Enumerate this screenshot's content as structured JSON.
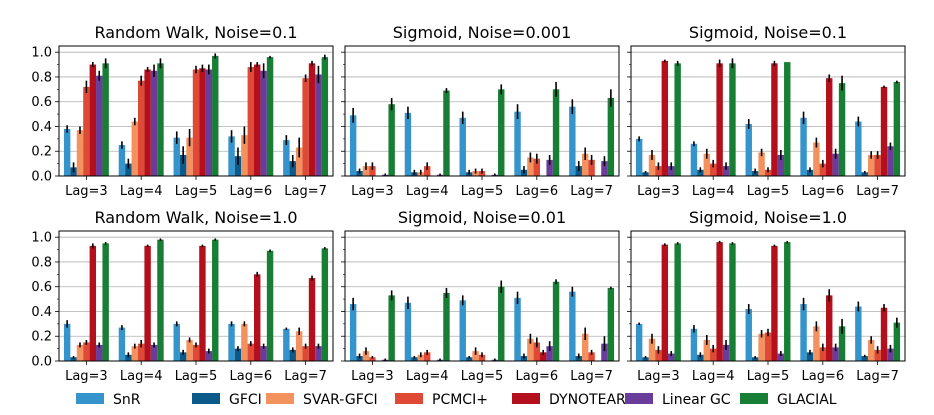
{
  "legend": [
    {
      "name": "SnR",
      "color": "#3594cc"
    },
    {
      "name": "GFCI",
      "color": "#0b5a8a"
    },
    {
      "name": "SVAR-GFCI",
      "color": "#f4925f"
    },
    {
      "name": "PCMCI+",
      "color": "#df4a37"
    },
    {
      "name": "DYNOTEARS",
      "color": "#b40f1c"
    },
    {
      "name": "Linear GC",
      "color": "#6a3d9a"
    },
    {
      "name": "GLACIAL",
      "color": "#187d35"
    }
  ],
  "chart_data": [
    {
      "type": "bar",
      "title": "Random Walk, Noise=0.1",
      "categories": [
        "Lag=3",
        "Lag=4",
        "Lag=5",
        "Lag=6",
        "Lag=7"
      ],
      "ylim": [
        0,
        1.05
      ],
      "yticks": [
        "0.0",
        "0.2",
        "0.4",
        "0.6",
        "0.8",
        "1.0"
      ],
      "series": [
        {
          "name": "SnR",
          "values": [
            0.38,
            0.25,
            0.31,
            0.32,
            0.29
          ],
          "err": [
            0.03,
            0.03,
            0.05,
            0.05,
            0.04
          ]
        },
        {
          "name": "GFCI",
          "values": [
            0.07,
            0.1,
            0.17,
            0.16,
            0.12
          ],
          "err": [
            0.04,
            0.04,
            0.07,
            0.07,
            0.05
          ]
        },
        {
          "name": "SVAR-GFCI",
          "values": [
            0.37,
            0.44,
            0.31,
            0.33,
            0.23
          ],
          "err": [
            0.03,
            0.03,
            0.07,
            0.07,
            0.08
          ]
        },
        {
          "name": "PCMCI+",
          "values": [
            0.72,
            0.77,
            0.86,
            0.88,
            0.79
          ],
          "err": [
            0.05,
            0.04,
            0.03,
            0.04,
            0.03
          ]
        },
        {
          "name": "DYNOTEARS",
          "values": [
            0.9,
            0.86,
            0.87,
            0.9,
            0.91
          ],
          "err": [
            0.02,
            0.02,
            0.03,
            0.02,
            0.02
          ]
        },
        {
          "name": "Linear GC",
          "values": [
            0.81,
            0.85,
            0.86,
            0.85,
            0.82
          ],
          "err": [
            0.04,
            0.05,
            0.04,
            0.06,
            0.07
          ]
        },
        {
          "name": "GLACIAL",
          "values": [
            0.91,
            0.91,
            0.97,
            0.96,
            0.96
          ],
          "err": [
            0.04,
            0.04,
            0.02,
            0.01,
            0.02
          ]
        }
      ]
    },
    {
      "type": "bar",
      "title": "Sigmoid, Noise=0.001",
      "categories": [
        "Lag=3",
        "Lag=4",
        "Lag=5",
        "Lag=6",
        "Lag=7"
      ],
      "ylim": [
        0,
        1.05
      ],
      "yticks": [],
      "series": [
        {
          "name": "SnR",
          "values": [
            0.49,
            0.51,
            0.47,
            0.52,
            0.56
          ],
          "err": [
            0.06,
            0.05,
            0.05,
            0.06,
            0.06
          ]
        },
        {
          "name": "GFCI",
          "values": [
            0.04,
            0.03,
            0.03,
            0.05,
            0.08
          ],
          "err": [
            0.02,
            0.02,
            0.02,
            0.03,
            0.04
          ]
        },
        {
          "name": "SVAR-GFCI",
          "values": [
            0.08,
            0.03,
            0.04,
            0.15,
            0.18
          ],
          "err": [
            0.03,
            0.02,
            0.02,
            0.04,
            0.05
          ]
        },
        {
          "name": "PCMCI+",
          "values": [
            0.08,
            0.08,
            0.04,
            0.14,
            0.13
          ],
          "err": [
            0.03,
            0.03,
            0.02,
            0.04,
            0.04
          ]
        },
        {
          "name": "DYNOTEARS",
          "values": [
            0,
            0,
            0,
            0,
            0
          ],
          "err": [
            0,
            0,
            0,
            0,
            0
          ]
        },
        {
          "name": "Linear GC",
          "values": [
            0.01,
            0.01,
            0.01,
            0.13,
            0.12
          ],
          "err": [
            0.01,
            0.01,
            0.01,
            0.04,
            0.04
          ]
        },
        {
          "name": "GLACIAL",
          "values": [
            0.58,
            0.69,
            0.7,
            0.7,
            0.63
          ],
          "err": [
            0.05,
            0.02,
            0.04,
            0.06,
            0.07
          ]
        }
      ]
    },
    {
      "type": "bar",
      "title": "Sigmoid, Noise=0.1",
      "categories": [
        "Lag=3",
        "Lag=4",
        "Lag=5",
        "Lag=6",
        "Lag=7"
      ],
      "ylim": [
        0,
        1.05
      ],
      "yticks": [],
      "series": [
        {
          "name": "SnR",
          "values": [
            0.3,
            0.26,
            0.42,
            0.47,
            0.44
          ],
          "err": [
            0.02,
            0.02,
            0.04,
            0.05,
            0.04
          ]
        },
        {
          "name": "GFCI",
          "values": [
            0.03,
            0.05,
            0.04,
            0.05,
            0.03
          ],
          "err": [
            0.01,
            0.02,
            0.02,
            0.02,
            0.01
          ]
        },
        {
          "name": "SVAR-GFCI",
          "values": [
            0.17,
            0.18,
            0.19,
            0.27,
            0.17
          ],
          "err": [
            0.04,
            0.04,
            0.03,
            0.04,
            0.03
          ]
        },
        {
          "name": "PCMCI+",
          "values": [
            0.08,
            0.1,
            0.05,
            0.1,
            0.17
          ],
          "err": [
            0.03,
            0.03,
            0.02,
            0.03,
            0.03
          ]
        },
        {
          "name": "DYNOTEARS",
          "values": [
            0.93,
            0.91,
            0.91,
            0.79,
            0.72
          ],
          "err": [
            0.01,
            0.03,
            0.02,
            0.03,
            0.01
          ]
        },
        {
          "name": "Linear GC",
          "values": [
            0.08,
            0.08,
            0.17,
            0.18,
            0.24
          ],
          "err": [
            0.03,
            0.03,
            0.04,
            0.04,
            0.03
          ]
        },
        {
          "name": "GLACIAL",
          "values": [
            0.91,
            0.91,
            0.92,
            0.75,
            0.76
          ],
          "err": [
            0.02,
            0.04,
            0.0,
            0.06,
            0.01
          ]
        }
      ]
    },
    {
      "type": "bar",
      "title": "Random Walk, Noise=1.0",
      "categories": [
        "Lag=3",
        "Lag=4",
        "Lag=5",
        "Lag=6",
        "Lag=7"
      ],
      "ylim": [
        0,
        1.05
      ],
      "yticks": [
        "0.0",
        "0.2",
        "0.4",
        "0.6",
        "0.8",
        "1.0"
      ],
      "series": [
        {
          "name": "SnR",
          "values": [
            0.3,
            0.27,
            0.3,
            0.3,
            0.26
          ],
          "err": [
            0.03,
            0.02,
            0.02,
            0.02,
            0.01
          ]
        },
        {
          "name": "GFCI",
          "values": [
            0.03,
            0.05,
            0.07,
            0.1,
            0.09
          ],
          "err": [
            0.01,
            0.02,
            0.02,
            0.02,
            0.02
          ]
        },
        {
          "name": "SVAR-GFCI",
          "values": [
            0.13,
            0.12,
            0.17,
            0.3,
            0.24
          ],
          "err": [
            0.02,
            0.02,
            0.02,
            0.02,
            0.03
          ]
        },
        {
          "name": "PCMCI+",
          "values": [
            0.15,
            0.14,
            0.13,
            0.14,
            0.12
          ],
          "err": [
            0.02,
            0.03,
            0.02,
            0.02,
            0.02
          ]
        },
        {
          "name": "DYNOTEARS",
          "values": [
            0.93,
            0.93,
            0.93,
            0.7,
            0.67
          ],
          "err": [
            0.02,
            0.01,
            0.01,
            0.02,
            0.02
          ]
        },
        {
          "name": "Linear GC",
          "values": [
            0.13,
            0.13,
            0.08,
            0.12,
            0.12
          ],
          "err": [
            0.02,
            0.02,
            0.02,
            0.02,
            0.02
          ]
        },
        {
          "name": "GLACIAL",
          "values": [
            0.95,
            0.98,
            0.98,
            0.89,
            0.91
          ],
          "err": [
            0.01,
            0.01,
            0.01,
            0.01,
            0.01
          ]
        }
      ]
    },
    {
      "type": "bar",
      "title": "Sigmoid, Noise=0.01",
      "categories": [
        "Lag=3",
        "Lag=4",
        "Lag=5",
        "Lag=6",
        "Lag=7"
      ],
      "ylim": [
        0,
        1.05
      ],
      "yticks": [],
      "series": [
        {
          "name": "SnR",
          "values": [
            0.46,
            0.47,
            0.49,
            0.51,
            0.56
          ],
          "err": [
            0.05,
            0.05,
            0.04,
            0.05,
            0.04
          ]
        },
        {
          "name": "GFCI",
          "values": [
            0.04,
            0.03,
            0.03,
            0.04,
            0.04
          ],
          "err": [
            0.02,
            0.01,
            0.01,
            0.02,
            0.02
          ]
        },
        {
          "name": "SVAR-GFCI",
          "values": [
            0.08,
            0.05,
            0.08,
            0.18,
            0.22
          ],
          "err": [
            0.03,
            0.02,
            0.03,
            0.04,
            0.05
          ]
        },
        {
          "name": "PCMCI+",
          "values": [
            0.03,
            0.07,
            0.05,
            0.15,
            0.07
          ],
          "err": [
            0.01,
            0.02,
            0.02,
            0.04,
            0.02
          ]
        },
        {
          "name": "DYNOTEARS",
          "values": [
            0,
            0,
            0,
            0.07,
            0
          ],
          "err": [
            0,
            0,
            0,
            0.02,
            0
          ]
        },
        {
          "name": "Linear GC",
          "values": [
            0.01,
            0.01,
            0.01,
            0.12,
            0.14
          ],
          "err": [
            0.01,
            0.01,
            0.01,
            0.04,
            0.06
          ]
        },
        {
          "name": "GLACIAL",
          "values": [
            0.53,
            0.55,
            0.6,
            0.64,
            0.59
          ],
          "err": [
            0.04,
            0.04,
            0.05,
            0.02,
            0.01
          ]
        }
      ]
    },
    {
      "type": "bar",
      "title": "Sigmoid, Noise=1.0",
      "categories": [
        "Lag=3",
        "Lag=4",
        "Lag=5",
        "Lag=6",
        "Lag=7"
      ],
      "ylim": [
        0,
        1.05
      ],
      "yticks": [],
      "series": [
        {
          "name": "SnR",
          "values": [
            0.3,
            0.26,
            0.42,
            0.46,
            0.44
          ],
          "err": [
            0.01,
            0.03,
            0.04,
            0.05,
            0.04
          ]
        },
        {
          "name": "GFCI",
          "values": [
            0.03,
            0.05,
            0.03,
            0.07,
            0.04
          ],
          "err": [
            0.01,
            0.02,
            0.01,
            0.02,
            0.01
          ]
        },
        {
          "name": "SVAR-GFCI",
          "values": [
            0.18,
            0.17,
            0.22,
            0.28,
            0.17
          ],
          "err": [
            0.04,
            0.04,
            0.03,
            0.04,
            0.03
          ]
        },
        {
          "name": "PCMCI+",
          "values": [
            0.09,
            0.1,
            0.23,
            0.11,
            0.09
          ],
          "err": [
            0.03,
            0.03,
            0.03,
            0.03,
            0.03
          ]
        },
        {
          "name": "DYNOTEARS",
          "values": [
            0.94,
            0.96,
            0.93,
            0.53,
            0.43
          ],
          "err": [
            0.01,
            0.01,
            0.01,
            0.05,
            0.03
          ]
        },
        {
          "name": "Linear GC",
          "values": [
            0.06,
            0.13,
            0.06,
            0.11,
            0.1
          ],
          "err": [
            0.02,
            0.04,
            0.02,
            0.03,
            0.03
          ]
        },
        {
          "name": "GLACIAL",
          "values": [
            0.95,
            0.95,
            0.96,
            0.28,
            0.31
          ],
          "err": [
            0.01,
            0.01,
            0.01,
            0.06,
            0.04
          ]
        }
      ]
    }
  ]
}
